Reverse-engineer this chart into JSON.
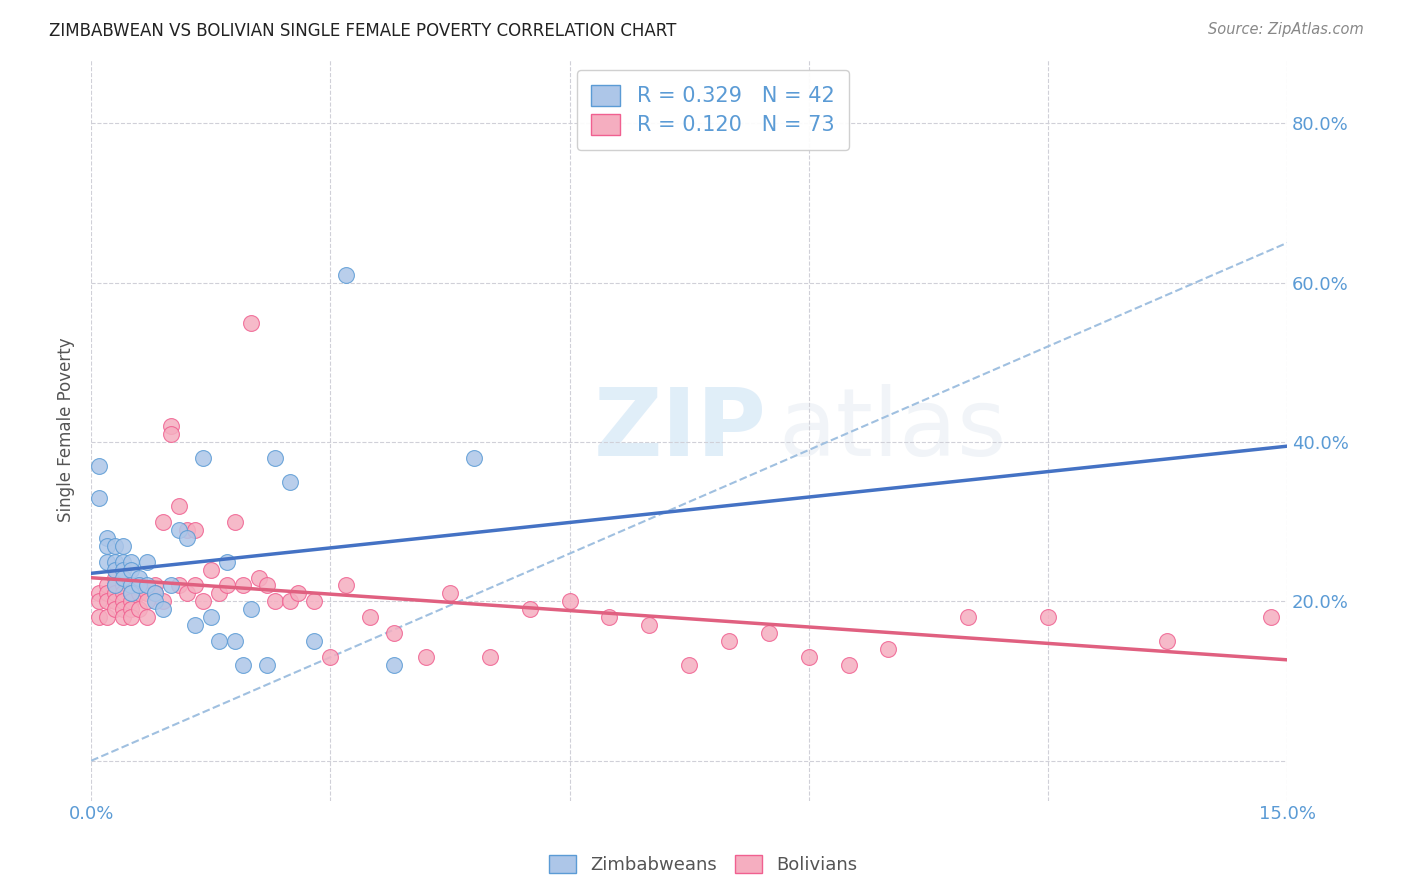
{
  "title": "ZIMBABWEAN VS BOLIVIAN SINGLE FEMALE POVERTY CORRELATION CHART",
  "source": "Source: ZipAtlas.com",
  "x_tick_positions": [
    0.0,
    0.03,
    0.06,
    0.09,
    0.12,
    0.15
  ],
  "x_tick_labels": [
    "0.0%",
    "",
    "",
    "",
    "",
    "15.0%"
  ],
  "y_tick_positions": [
    0.0,
    0.2,
    0.4,
    0.6,
    0.8
  ],
  "y_tick_labels": [
    "",
    "20.0%",
    "40.0%",
    "60.0%",
    "80.0%"
  ],
  "xmin": 0.0,
  "xmax": 0.15,
  "ymin": -0.05,
  "ymax": 0.88,
  "zimbabwe_R": 0.329,
  "zimbabwe_N": 42,
  "bolivia_R": 0.12,
  "bolivia_N": 73,
  "zimbabwe_color": "#adc6e8",
  "bolivia_color": "#f5aec0",
  "zimbabwe_edge_color": "#5b9bd5",
  "bolivia_edge_color": "#f06090",
  "zimbabwe_line_color": "#4472c4",
  "bolivia_line_color": "#e06080",
  "dashed_line_color": "#a0c0e0",
  "grid_color": "#d0d0d8",
  "tick_color": "#5b9bd5",
  "ylabel_text": "Single Female Poverty",
  "legend_label1": "Zimbabweans",
  "legend_label2": "Bolivians",
  "zim_x": [
    0.001,
    0.001,
    0.002,
    0.002,
    0.002,
    0.003,
    0.003,
    0.003,
    0.003,
    0.004,
    0.004,
    0.004,
    0.004,
    0.005,
    0.005,
    0.005,
    0.005,
    0.006,
    0.006,
    0.007,
    0.007,
    0.008,
    0.008,
    0.009,
    0.01,
    0.011,
    0.012,
    0.013,
    0.014,
    0.015,
    0.016,
    0.017,
    0.018,
    0.019,
    0.02,
    0.022,
    0.023,
    0.025,
    0.028,
    0.032,
    0.038,
    0.048
  ],
  "zim_y": [
    0.37,
    0.33,
    0.28,
    0.27,
    0.25,
    0.27,
    0.25,
    0.24,
    0.22,
    0.25,
    0.24,
    0.27,
    0.23,
    0.25,
    0.24,
    0.22,
    0.21,
    0.23,
    0.22,
    0.22,
    0.25,
    0.21,
    0.2,
    0.19,
    0.22,
    0.29,
    0.28,
    0.17,
    0.38,
    0.18,
    0.15,
    0.25,
    0.15,
    0.12,
    0.19,
    0.12,
    0.38,
    0.35,
    0.15,
    0.61,
    0.12,
    0.38
  ],
  "bol_x": [
    0.001,
    0.001,
    0.001,
    0.002,
    0.002,
    0.002,
    0.002,
    0.003,
    0.003,
    0.003,
    0.003,
    0.003,
    0.004,
    0.004,
    0.004,
    0.004,
    0.004,
    0.005,
    0.005,
    0.005,
    0.005,
    0.006,
    0.006,
    0.006,
    0.007,
    0.007,
    0.007,
    0.008,
    0.008,
    0.009,
    0.009,
    0.01,
    0.01,
    0.011,
    0.011,
    0.012,
    0.012,
    0.013,
    0.013,
    0.014,
    0.015,
    0.016,
    0.017,
    0.018,
    0.019,
    0.02,
    0.021,
    0.022,
    0.023,
    0.025,
    0.026,
    0.028,
    0.03,
    0.032,
    0.035,
    0.038,
    0.042,
    0.045,
    0.05,
    0.055,
    0.06,
    0.065,
    0.07,
    0.075,
    0.08,
    0.085,
    0.09,
    0.095,
    0.1,
    0.11,
    0.12,
    0.135,
    0.148
  ],
  "bol_y": [
    0.21,
    0.2,
    0.18,
    0.22,
    0.21,
    0.2,
    0.18,
    0.23,
    0.22,
    0.21,
    0.2,
    0.19,
    0.22,
    0.21,
    0.2,
    0.19,
    0.18,
    0.21,
    0.2,
    0.19,
    0.18,
    0.22,
    0.21,
    0.19,
    0.21,
    0.2,
    0.18,
    0.22,
    0.21,
    0.3,
    0.2,
    0.42,
    0.41,
    0.22,
    0.32,
    0.29,
    0.21,
    0.29,
    0.22,
    0.2,
    0.24,
    0.21,
    0.22,
    0.3,
    0.22,
    0.55,
    0.23,
    0.22,
    0.2,
    0.2,
    0.21,
    0.2,
    0.13,
    0.22,
    0.18,
    0.16,
    0.13,
    0.21,
    0.13,
    0.19,
    0.2,
    0.18,
    0.17,
    0.12,
    0.15,
    0.16,
    0.13,
    0.12,
    0.14,
    0.18,
    0.18,
    0.15,
    0.18
  ]
}
